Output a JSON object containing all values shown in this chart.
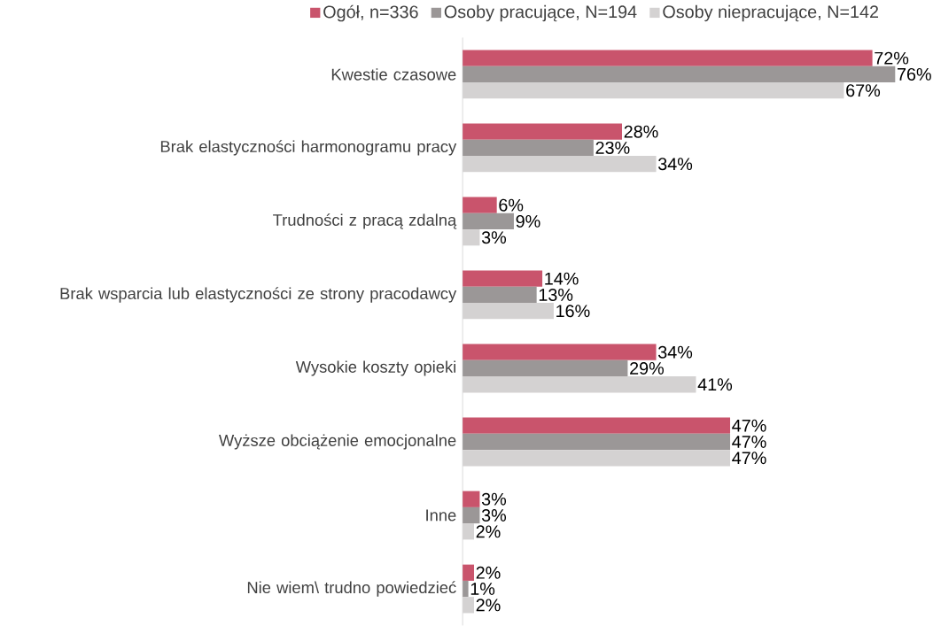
{
  "chart_data": {
    "type": "bar",
    "orientation": "horizontal",
    "legend": "top",
    "tick_labels": "y",
    "categories": [
      "Kwestie czasowe",
      "Brak elastyczności harmonogramu pracy",
      "Trudności z pracą zdalną",
      "Brak wsparcia lub elastyczności ze strony pracodawcy",
      "Wysokie koszty opieki",
      "Wyższe obciążenie emocjonalne",
      "Inne",
      "Nie wiem\\ trudno powiedzieć"
    ],
    "series": [
      {
        "name": "Ogół, n=336",
        "color": "#c9546c",
        "values": [
          72,
          28,
          6,
          14,
          34,
          47,
          3,
          2
        ],
        "value_labels": [
          "72%",
          "28%",
          "6%",
          "14%",
          "34%",
          "47%",
          "3%",
          "2%"
        ]
      },
      {
        "name": "Osoby pracujące, N=194",
        "color": "#9b9797",
        "values": [
          76,
          23,
          9,
          13,
          29,
          47,
          3,
          1
        ],
        "value_labels": [
          "76%",
          "23%",
          "9%",
          "13%",
          "29%",
          "47%",
          "3%",
          "1%"
        ]
      },
      {
        "name": "Osoby niepracujące, N=142",
        "color": "#d4d2d2",
        "values": [
          67,
          34,
          3,
          16,
          41,
          47,
          2,
          2
        ],
        "value_labels": [
          "67%",
          "34%",
          "3%",
          "16%",
          "41%",
          "47%",
          "2%",
          "2%"
        ]
      }
    ]
  }
}
